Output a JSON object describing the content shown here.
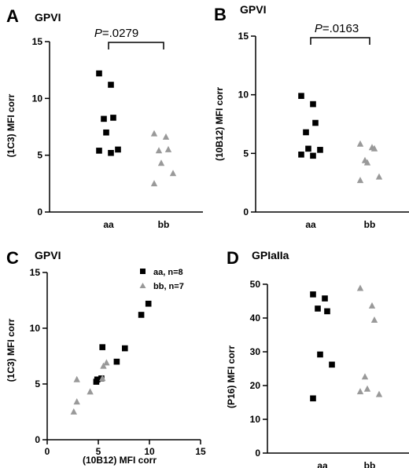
{
  "colors": {
    "aa": "#000000",
    "bb": "#999999",
    "axis": "#000000"
  },
  "chart_data": [
    {
      "id": "A",
      "type": "scatter",
      "letter": "A",
      "title": "GPVI",
      "ylabel": "(1C3) MFI corr",
      "ylim": [
        0,
        15
      ],
      "yticks": [
        0,
        5,
        10,
        15
      ],
      "categories": [
        "aa",
        "bb"
      ],
      "pvalue": {
        "italic": "P",
        "rest": "=.0279"
      },
      "series": [
        {
          "name": "aa",
          "marker": "square",
          "values": [
            12.2,
            11.2,
            8.3,
            8.2,
            7.0,
            5.5,
            5.4,
            5.2
          ]
        },
        {
          "name": "bb",
          "marker": "triangle",
          "values": [
            6.9,
            6.6,
            5.5,
            5.4,
            4.3,
            3.4,
            2.5
          ]
        }
      ]
    },
    {
      "id": "B",
      "type": "scatter",
      "letter": "B",
      "title": "GPVI",
      "ylabel": "(10B12) MFI corr",
      "ylim": [
        0,
        15
      ],
      "yticks": [
        0,
        5,
        10,
        15
      ],
      "categories": [
        "aa",
        "bb"
      ],
      "pvalue": {
        "italic": "P",
        "rest": "=.0163"
      },
      "series": [
        {
          "name": "aa",
          "marker": "square",
          "values": [
            9.9,
            9.2,
            7.6,
            6.8,
            5.4,
            5.3,
            4.9,
            4.8
          ]
        },
        {
          "name": "bb",
          "marker": "triangle",
          "values": [
            5.8,
            5.5,
            5.4,
            4.4,
            4.2,
            3.0,
            2.7
          ]
        }
      ]
    },
    {
      "id": "C",
      "type": "scatter",
      "letter": "C",
      "title": "GPVI",
      "xlabel": "(10B12) MFI corr",
      "ylabel": "(1C3) MFI corr",
      "xlim": [
        0,
        15
      ],
      "ylim": [
        0,
        15
      ],
      "xticks": [
        0,
        5,
        10,
        15
      ],
      "yticks": [
        0,
        5,
        10,
        15
      ],
      "legend": [
        "aa, n=8",
        "bb, n=7"
      ],
      "series": [
        {
          "name": "aa, n=8",
          "marker": "square",
          "points": [
            [
              9.9,
              12.2
            ],
            [
              9.2,
              11.2
            ],
            [
              5.4,
              8.3
            ],
            [
              7.6,
              8.2
            ],
            [
              6.8,
              7.0
            ],
            [
              5.3,
              5.5
            ],
            [
              4.9,
              5.4
            ],
            [
              4.8,
              5.2
            ]
          ]
        },
        {
          "name": "bb, n=7",
          "marker": "triangle",
          "points": [
            [
              5.8,
              6.9
            ],
            [
              5.5,
              6.6
            ],
            [
              5.4,
              5.5
            ],
            [
              2.9,
              5.4
            ],
            [
              4.2,
              4.3
            ],
            [
              2.9,
              3.4
            ],
            [
              2.6,
              2.5
            ]
          ]
        }
      ]
    },
    {
      "id": "D",
      "type": "scatter",
      "letter": "D",
      "title": "GPIaIIa",
      "ylabel": "(P16) MFI corr",
      "ylim": [
        0,
        50
      ],
      "yticks": [
        0,
        10,
        20,
        30,
        40,
        50
      ],
      "categories": [
        "aa",
        "bb"
      ],
      "series": [
        {
          "name": "aa",
          "marker": "square",
          "values": [
            47.0,
            45.8,
            42.0,
            42.8,
            29.2,
            26.2,
            16.2
          ]
        },
        {
          "name": "bb",
          "marker": "triangle",
          "values": [
            48.8,
            43.6,
            39.4,
            22.6,
            19.0,
            17.4,
            18.2
          ]
        }
      ]
    }
  ]
}
